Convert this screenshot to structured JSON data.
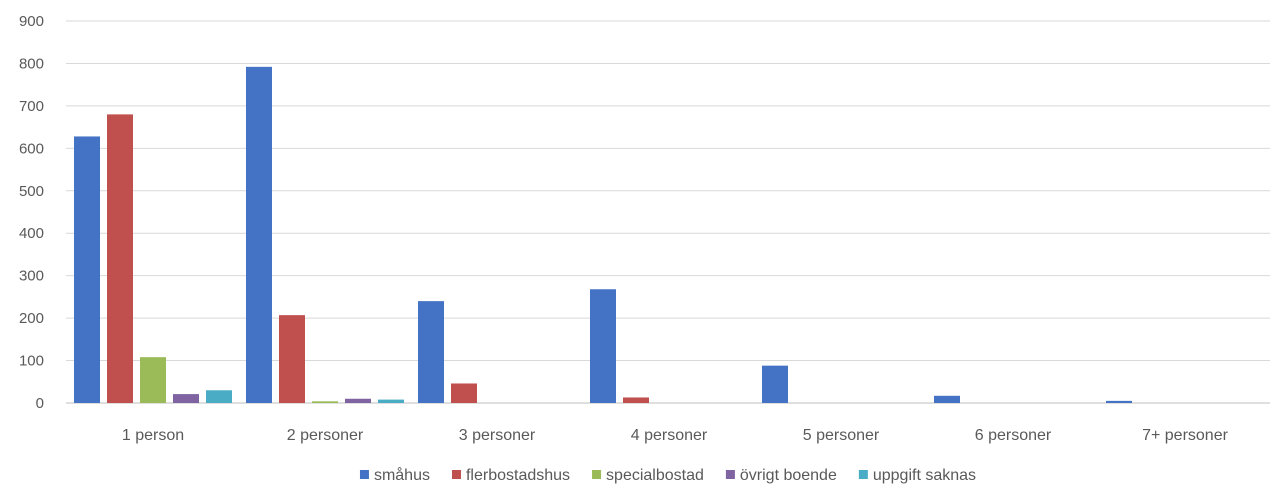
{
  "chart_data": {
    "type": "bar",
    "categories": [
      "1 person",
      "2 personer",
      "3 personer",
      "4 personer",
      "5 personer",
      "6 personer",
      "7+ personer"
    ],
    "series": [
      {
        "name": "småhus",
        "color": "#4472C4",
        "values": [
          628,
          792,
          240,
          268,
          88,
          17,
          5
        ]
      },
      {
        "name": "flerbostadshus",
        "color": "#C0504D",
        "values": [
          680,
          207,
          46,
          13,
          0,
          0,
          0
        ]
      },
      {
        "name": "specialbostad",
        "color": "#9BBB59",
        "values": [
          108,
          4,
          0,
          0,
          0,
          0,
          0
        ]
      },
      {
        "name": "övrigt boende",
        "color": "#8064A2",
        "values": [
          21,
          10,
          0,
          0,
          0,
          0,
          0
        ]
      },
      {
        "name": "uppgift saknas",
        "color": "#4BACC6",
        "values": [
          30,
          8,
          0,
          0,
          0,
          0,
          0
        ]
      }
    ],
    "ylim": [
      0,
      900
    ],
    "yticks": [
      0,
      100,
      200,
      300,
      400,
      500,
      600,
      700,
      800,
      900
    ],
    "grid": true,
    "legend_position": "bottom"
  }
}
